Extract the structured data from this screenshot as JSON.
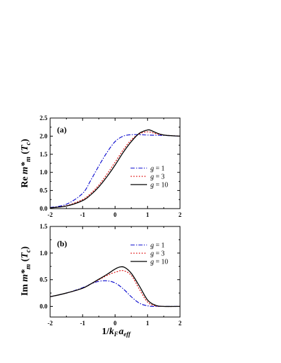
{
  "chart_data": [
    {
      "type": "line",
      "panel_label": "(a)",
      "ylabel": {
        "prefix": "Re ",
        "main": "m*",
        "sub": "m",
        "suffix_open": " (",
        "arg": "T",
        "arg_sub": "c",
        "suffix_close": ")"
      },
      "xlim": [
        -2,
        2
      ],
      "ylim": [
        0,
        2.5
      ],
      "x_ticks": [
        "-2",
        "-1",
        "0",
        "1",
        "2"
      ],
      "y_ticks": [
        "0.0",
        "0.5",
        "1.0",
        "1.5",
        "2.0",
        "2.5"
      ],
      "legend": {
        "placement": "center-right",
        "var": "g",
        "eq": " = "
      },
      "series": [
        {
          "name": "1",
          "color": "#0000cc",
          "dash": "dashdot",
          "x": [
            -2,
            -1.5,
            -1,
            -0.75,
            -0.5,
            -0.25,
            0,
            0.25,
            0.5,
            0.75,
            1,
            1.5,
            2
          ],
          "y": [
            0.03,
            0.12,
            0.42,
            0.78,
            1.18,
            1.55,
            1.85,
            2.0,
            2.04,
            2.04,
            2.03,
            2.02,
            2.0
          ]
        },
        {
          "name": "3",
          "color": "#dd0000",
          "dash": "dot",
          "x": [
            -2,
            -1.5,
            -1,
            -0.75,
            -0.5,
            -0.25,
            0,
            0.25,
            0.5,
            0.75,
            1,
            1.25,
            1.5,
            2
          ],
          "y": [
            0.02,
            0.08,
            0.25,
            0.42,
            0.65,
            0.95,
            1.28,
            1.62,
            1.9,
            2.06,
            2.12,
            2.07,
            2.03,
            2.0
          ]
        },
        {
          "name": "10",
          "color": "#000000",
          "dash": "solid",
          "x": [
            -2,
            -1.5,
            -1,
            -0.75,
            -0.5,
            -0.25,
            0,
            0.25,
            0.5,
            0.75,
            1,
            1.1,
            1.25,
            1.5,
            2
          ],
          "y": [
            0.02,
            0.07,
            0.22,
            0.38,
            0.6,
            0.88,
            1.2,
            1.55,
            1.85,
            2.08,
            2.17,
            2.16,
            2.1,
            2.03,
            2.0
          ]
        }
      ]
    },
    {
      "type": "line",
      "panel_label": "(b)",
      "ylabel": {
        "prefix": "Im ",
        "main": "m*",
        "sub": "m",
        "suffix_open": " (",
        "arg": "T",
        "arg_sub": "c",
        "suffix_close": ")"
      },
      "xlabel": {
        "pre": "1/",
        "k": "k",
        "k_sub": "F",
        "a": "a",
        "a_sub": "eff"
      },
      "xlim": [
        -2,
        2
      ],
      "ylim": [
        -0.2,
        1.5
      ],
      "x_ticks": [
        "-2",
        "-1",
        "0",
        "1",
        "2"
      ],
      "y_ticks": [
        "0.0",
        "0.5",
        "1.0",
        "1.5"
      ],
      "legend": {
        "placement": "top-right",
        "var": "g",
        "eq": " = "
      },
      "series": [
        {
          "name": "1",
          "color": "#0000cc",
          "dash": "dashdot",
          "x": [
            -2,
            -1.5,
            -1,
            -0.75,
            -0.5,
            -0.25,
            0,
            0.25,
            0.5,
            0.75,
            1,
            1.25,
            1.5,
            2
          ],
          "y": [
            0.18,
            0.25,
            0.35,
            0.42,
            0.47,
            0.48,
            0.44,
            0.33,
            0.18,
            0.06,
            0.01,
            0.0,
            0.0,
            0.0
          ]
        },
        {
          "name": "3",
          "color": "#dd0000",
          "dash": "dot",
          "x": [
            -2,
            -1.5,
            -1,
            -0.75,
            -0.5,
            -0.25,
            0,
            0.25,
            0.5,
            0.75,
            1,
            1.25,
            1.5,
            2
          ],
          "y": [
            0.18,
            0.25,
            0.34,
            0.42,
            0.5,
            0.58,
            0.64,
            0.67,
            0.58,
            0.32,
            0.08,
            0.01,
            0.0,
            0.0
          ]
        },
        {
          "name": "10",
          "color": "#000000",
          "dash": "solid",
          "x": [
            -2,
            -1.5,
            -1,
            -0.75,
            -0.5,
            -0.25,
            0,
            0.15,
            0.3,
            0.5,
            0.75,
            1,
            1.25,
            1.5,
            2
          ],
          "y": [
            0.18,
            0.25,
            0.34,
            0.42,
            0.51,
            0.6,
            0.7,
            0.74,
            0.73,
            0.62,
            0.38,
            0.12,
            0.02,
            0.0,
            0.0
          ]
        }
      ]
    }
  ]
}
